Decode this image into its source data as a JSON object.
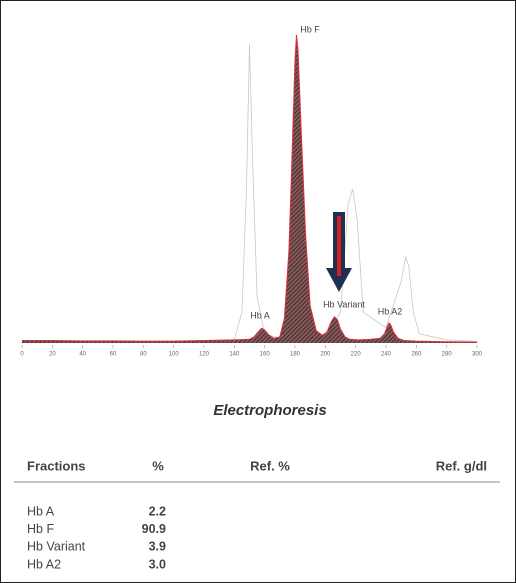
{
  "chart_data": {
    "type": "line",
    "title": "Electrophoresis",
    "annotations": [
      "Hb F",
      "Hb A",
      "Hb Variant",
      "Hb A2"
    ],
    "series": [
      {
        "color": "#c8c8c8",
        "x": [
          0,
          100,
          140,
          145,
          148,
          150,
          152,
          155,
          160,
          170,
          200,
          210,
          215,
          218,
          221,
          225,
          240,
          250,
          253,
          255,
          258,
          262,
          280,
          300
        ],
        "values": [
          0.5,
          0.5,
          1,
          10,
          50,
          97,
          60,
          15,
          3,
          1.5,
          1.5,
          10,
          45,
          50,
          40,
          10,
          5,
          20,
          28,
          25,
          10,
          3,
          1,
          0.5
        ]
      },
      {
        "color": "#e0303a",
        "fill": "#3a2a2a",
        "x": [
          0,
          20,
          40,
          60,
          80,
          100,
          120,
          140,
          150,
          153,
          156,
          158,
          160,
          163,
          166,
          170,
          173,
          176,
          178,
          180,
          181,
          182,
          184,
          187,
          190,
          194,
          198,
          201,
          204,
          206,
          208,
          210,
          213,
          216,
          222,
          230,
          236,
          239,
          241,
          242,
          243,
          245,
          248,
          252,
          260,
          280,
          300
        ],
        "values": [
          0.8,
          0.8,
          0.7,
          0.7,
          0.6,
          0.6,
          0.8,
          1,
          1.2,
          2,
          3.8,
          4.8,
          4.2,
          2.5,
          1.5,
          2,
          8,
          30,
          60,
          92,
          100,
          95,
          70,
          35,
          12,
          4,
          2.5,
          3.5,
          7,
          8.5,
          7.5,
          4.5,
          2,
          1.2,
          1,
          1.2,
          1.5,
          3,
          5.5,
          6.5,
          6,
          3.5,
          1.5,
          0.8,
          0.6,
          0.4,
          0.3
        ]
      }
    ],
    "xlim": [
      0,
      300
    ],
    "ylim": [
      0,
      100
    ],
    "xticks": [
      0,
      20,
      40,
      60,
      80,
      100,
      120,
      140,
      160,
      180,
      200,
      220,
      240,
      260,
      280,
      300
    ]
  },
  "table": {
    "header": [
      "Fractions",
      "%",
      "Ref. %",
      "Ref. g/dl"
    ],
    "rows": [
      [
        "Hb A",
        "2.2"
      ],
      [
        "Hb F",
        "90.9"
      ],
      [
        "Hb Variant",
        "3.9"
      ],
      [
        "Hb A2",
        "3.0"
      ]
    ]
  }
}
